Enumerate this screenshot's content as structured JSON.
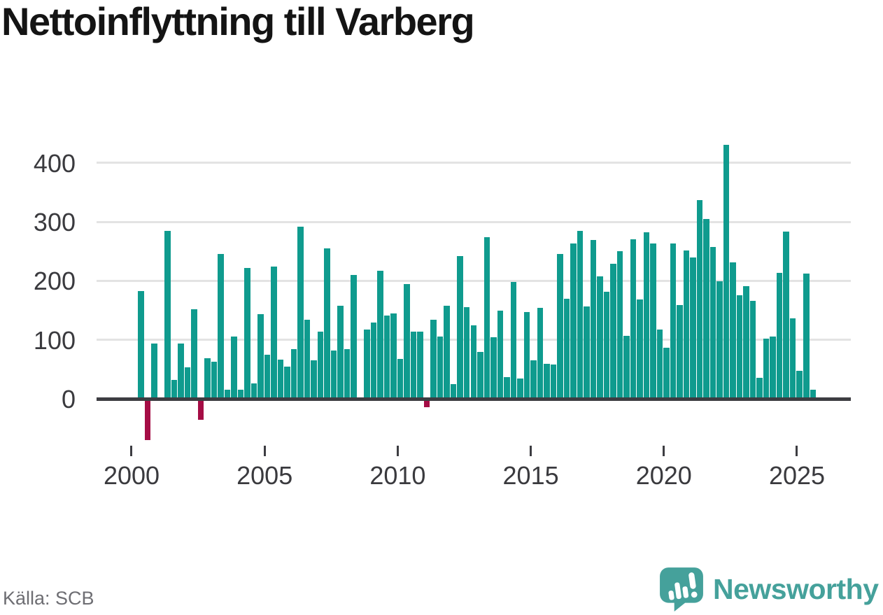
{
  "title": "Nettoinflyttning till Varberg",
  "source": "Källa: SCB",
  "branding": {
    "logo_text": "Newsworthy"
  },
  "colors": {
    "positive_bar": "#0f9b8e",
    "negative_bar": "#a50d45",
    "gridline": "#e3e3e3",
    "axis": "#3d3d42",
    "title_text": "#141414",
    "tick_text": "#3a3a3e",
    "source_text": "#6e6e73",
    "logo_teal": "#45a19b"
  },
  "chart_data": {
    "type": "bar",
    "title": "Nettoinflyttning till Varberg",
    "xlabel": "",
    "ylabel": "",
    "grid": "horizontal",
    "legend": "none",
    "ylim": [
      -80,
      450
    ],
    "yticks": [
      0,
      100,
      200,
      300,
      400
    ],
    "xticks": [
      2000,
      2005,
      2010,
      2015,
      2020,
      2025
    ],
    "x": [
      "2000 Q2",
      "2000 Q3",
      "2000 Q4",
      "2001 Q1",
      "2001 Q2",
      "2001 Q3",
      "2001 Q4",
      "2002 Q1",
      "2002 Q2",
      "2002 Q3",
      "2002 Q4",
      "2003 Q1",
      "2003 Q2",
      "2003 Q3",
      "2003 Q4",
      "2004 Q1",
      "2004 Q2",
      "2004 Q3",
      "2004 Q4",
      "2005 Q1",
      "2005 Q2",
      "2005 Q3",
      "2005 Q4",
      "2006 Q1",
      "2006 Q2",
      "2006 Q3",
      "2006 Q4",
      "2007 Q1",
      "2007 Q2",
      "2007 Q3",
      "2007 Q4",
      "2008 Q1",
      "2008 Q2",
      "2008 Q3",
      "2008 Q4",
      "2009 Q1",
      "2009 Q2",
      "2009 Q3",
      "2009 Q4",
      "2010 Q1",
      "2010 Q2",
      "2010 Q3",
      "2010 Q4",
      "2011 Q1",
      "2011 Q2",
      "2011 Q3",
      "2011 Q4",
      "2012 Q1",
      "2012 Q2",
      "2012 Q3",
      "2012 Q4",
      "2013 Q1",
      "2013 Q2",
      "2013 Q3",
      "2013 Q4",
      "2014 Q1",
      "2014 Q2",
      "2014 Q3",
      "2014 Q4",
      "2015 Q1",
      "2015 Q2",
      "2015 Q3",
      "2015 Q4",
      "2016 Q1",
      "2016 Q2",
      "2016 Q3",
      "2016 Q4",
      "2017 Q1",
      "2017 Q2",
      "2017 Q3",
      "2017 Q4",
      "2018 Q1",
      "2018 Q2",
      "2018 Q3",
      "2018 Q4",
      "2019 Q1",
      "2019 Q2",
      "2019 Q3",
      "2019 Q4",
      "2020 Q1",
      "2020 Q2",
      "2020 Q3",
      "2020 Q4",
      "2021 Q1",
      "2021 Q2",
      "2021 Q3",
      "2021 Q4",
      "2022 Q1",
      "2022 Q2",
      "2022 Q3",
      "2022 Q4",
      "2023 Q1",
      "2023 Q2",
      "2023 Q3",
      "2023 Q4",
      "2024 Q1",
      "2024 Q2",
      "2024 Q3",
      "2024 Q4",
      "2025 Q1",
      "2025 Q2",
      "2025 Q3"
    ],
    "values": [
      183,
      -67,
      94,
      0,
      285,
      32,
      94,
      53,
      152,
      -33,
      69,
      63,
      245,
      15,
      106,
      15,
      222,
      26,
      143,
      75,
      224,
      66,
      55,
      84,
      292,
      134,
      65,
      114,
      255,
      82,
      158,
      84,
      210,
      0,
      118,
      129,
      217,
      141,
      145,
      68,
      194,
      114,
      114,
      -11,
      134,
      106,
      158,
      25,
      242,
      155,
      124,
      80,
      274,
      104,
      150,
      37,
      198,
      34,
      147,
      65,
      154,
      59,
      58,
      246,
      170,
      263,
      285,
      157,
      269,
      208,
      182,
      229,
      250,
      107,
      271,
      168,
      282,
      263,
      117,
      87,
      263,
      159,
      251,
      240,
      337,
      305,
      258,
      199,
      431,
      231,
      176,
      191,
      166,
      36,
      102,
      105,
      213,
      283,
      137,
      47,
      212,
      15
    ]
  }
}
